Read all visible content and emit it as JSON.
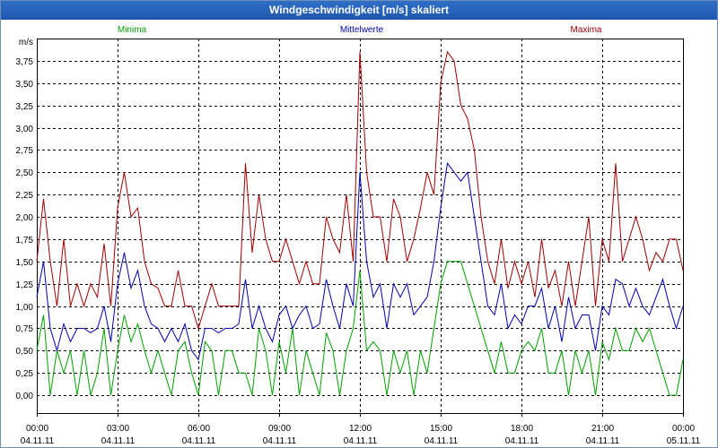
{
  "window": {
    "title": "Windgeschwindigkeit [m/s] skaliert"
  },
  "colors": {
    "min": "#00a000",
    "mean": "#0000b0",
    "max": "#a00000",
    "grid": "#000000"
  },
  "chart_data": {
    "type": "line",
    "title": "Windgeschwindigkeit [m/s] skaliert",
    "ylabel": "m/s",
    "ylim": [
      -0.2,
      4.0
    ],
    "xlim": [
      0,
      24
    ],
    "yticks": [
      0,
      0.25,
      0.5,
      0.75,
      1.0,
      1.25,
      1.5,
      1.75,
      2.0,
      2.25,
      2.5,
      2.75,
      3.0,
      3.25,
      3.5,
      3.75
    ],
    "ytick_labels": [
      "0,00",
      "0,25",
      "0,50",
      "0,75",
      "1,00",
      "1,25",
      "1,50",
      "1,75",
      "2,00",
      "2,25",
      "2,50",
      "2,75",
      "3,00",
      "3,25",
      "3,50",
      "3,75"
    ],
    "xticks": [
      {
        "x": 0,
        "time": "00:00",
        "date": "04.11.11"
      },
      {
        "x": 3,
        "time": "03:00",
        "date": "04.11.11"
      },
      {
        "x": 6,
        "time": "06:00",
        "date": "04.11.11"
      },
      {
        "x": 9,
        "time": "09:00",
        "date": "04.11.11"
      },
      {
        "x": 12,
        "time": "12:00",
        "date": "04.11.11"
      },
      {
        "x": 15,
        "time": "15:00",
        "date": "04.11.11"
      },
      {
        "x": 18,
        "time": "18:00",
        "date": "04.11.11"
      },
      {
        "x": 21,
        "time": "21:00",
        "date": "04.11.11"
      },
      {
        "x": 24,
        "time": "00:00",
        "date": "05.11.11"
      }
    ],
    "series": [
      {
        "key": "min",
        "name": "Minima",
        "x": [
          0,
          0.25,
          0.5,
          0.75,
          1,
          1.25,
          1.5,
          1.75,
          2,
          2.25,
          2.5,
          2.75,
          3,
          3.25,
          3.5,
          3.75,
          4,
          4.25,
          4.5,
          4.75,
          5,
          5.25,
          5.5,
          5.75,
          6,
          6.25,
          6.5,
          6.75,
          7,
          7.25,
          7.5,
          7.75,
          8,
          8.25,
          8.5,
          8.75,
          9,
          9.25,
          9.5,
          9.75,
          10,
          10.25,
          10.5,
          10.75,
          11,
          11.25,
          11.5,
          11.75,
          12,
          12.25,
          12.5,
          12.75,
          13,
          13.25,
          13.5,
          13.75,
          14,
          14.25,
          14.5,
          14.75,
          15,
          15.25,
          15.5,
          15.75,
          16,
          16.25,
          16.5,
          16.75,
          17,
          17.25,
          17.5,
          17.75,
          18,
          18.25,
          18.5,
          18.75,
          19,
          19.25,
          19.5,
          19.75,
          20,
          20.25,
          20.5,
          20.75,
          21,
          21.25,
          21.5,
          21.75,
          22,
          22.25,
          22.5,
          22.75,
          23,
          23.25,
          23.5,
          23.75,
          24
        ],
        "values": [
          0.5,
          0.9,
          0,
          0.5,
          0.25,
          0.5,
          0,
          0.5,
          0,
          0.25,
          0.75,
          0,
          0.5,
          0.9,
          0.6,
          0.8,
          0.5,
          0.25,
          0.5,
          0.25,
          0,
          0.5,
          0.6,
          0.25,
          0,
          0.6,
          0.5,
          0,
          0.5,
          0.5,
          0.25,
          0.25,
          0,
          0.75,
          0.5,
          0,
          0.6,
          0.25,
          0.75,
          0,
          0.5,
          0.25,
          0,
          0.7,
          0.5,
          0,
          0.5,
          0.75,
          1.4,
          0.5,
          0.6,
          0.5,
          0,
          0.5,
          0.25,
          0.5,
          0,
          0.5,
          0.25,
          0.75,
          1.25,
          1.5,
          1.5,
          1.5,
          1.25,
          1.0,
          0.75,
          0.5,
          0.25,
          0.6,
          0.25,
          0.25,
          0.5,
          0.6,
          0.5,
          0.75,
          0.25,
          0.25,
          0.5,
          0,
          0.5,
          0.25,
          0.5,
          0,
          0.6,
          0.4,
          0.75,
          0.5,
          0.5,
          0.75,
          0.6,
          0.75,
          0.5,
          0.25,
          0,
          0,
          0.4
        ]
      },
      {
        "key": "mean",
        "name": "Mittelwerte",
        "x": [
          0,
          0.25,
          0.5,
          0.75,
          1,
          1.25,
          1.5,
          1.75,
          2,
          2.25,
          2.5,
          2.75,
          3,
          3.25,
          3.5,
          3.75,
          4,
          4.25,
          4.5,
          4.75,
          5,
          5.25,
          5.5,
          5.75,
          6,
          6.25,
          6.5,
          6.75,
          7,
          7.25,
          7.5,
          7.75,
          8,
          8.25,
          8.5,
          8.75,
          9,
          9.25,
          9.5,
          9.75,
          10,
          10.25,
          10.5,
          10.75,
          11,
          11.25,
          11.5,
          11.75,
          12,
          12.25,
          12.5,
          12.75,
          13,
          13.25,
          13.5,
          13.75,
          14,
          14.25,
          14.5,
          14.75,
          15,
          15.25,
          15.5,
          15.75,
          16,
          16.25,
          16.5,
          16.75,
          17,
          17.25,
          17.5,
          17.75,
          18,
          18.25,
          18.5,
          18.75,
          19,
          19.25,
          19.5,
          19.75,
          20,
          20.25,
          20.5,
          20.75,
          21,
          21.25,
          21.5,
          21.75,
          22,
          22.25,
          22.5,
          22.75,
          23,
          23.25,
          23.5,
          23.75,
          24
        ],
        "values": [
          1.1,
          1.5,
          0.75,
          0.5,
          0.8,
          0.6,
          0.75,
          0.75,
          0.7,
          0.75,
          1.0,
          0.6,
          1.25,
          1.6,
          1.2,
          1.4,
          1.0,
          0.8,
          0.75,
          0.6,
          0.75,
          0.6,
          0.8,
          0.5,
          0.4,
          0.75,
          0.75,
          0.7,
          0.75,
          0.75,
          0.8,
          1.3,
          0.75,
          1.0,
          0.75,
          0.6,
          0.9,
          1.0,
          0.75,
          0.9,
          1.0,
          0.75,
          0.8,
          1.3,
          1.0,
          0.75,
          1.25,
          1.0,
          2.5,
          1.5,
          1.1,
          1.25,
          0.75,
          1.25,
          1.1,
          1.25,
          0.9,
          1.0,
          1.1,
          1.5,
          2.1,
          2.6,
          2.5,
          2.4,
          2.5,
          2.0,
          1.5,
          1.0,
          0.9,
          1.25,
          0.75,
          0.9,
          0.8,
          1.0,
          1.0,
          1.2,
          0.75,
          1.0,
          0.6,
          1.1,
          0.75,
          0.9,
          0.9,
          0.5,
          1.0,
          0.9,
          1.3,
          1.25,
          1.0,
          1.2,
          1.0,
          0.9,
          1.1,
          1.3,
          1.0,
          0.75,
          1.0
        ]
      },
      {
        "key": "max",
        "name": "Maxima",
        "x": [
          0,
          0.25,
          0.5,
          0.75,
          1,
          1.25,
          1.5,
          1.75,
          2,
          2.25,
          2.5,
          2.75,
          3,
          3.25,
          3.5,
          3.75,
          4,
          4.25,
          4.5,
          4.75,
          5,
          5.25,
          5.5,
          5.75,
          6,
          6.25,
          6.5,
          6.75,
          7,
          7.25,
          7.5,
          7.75,
          8,
          8.25,
          8.5,
          8.75,
          9,
          9.25,
          9.5,
          9.75,
          10,
          10.25,
          10.5,
          10.75,
          11,
          11.25,
          11.5,
          11.75,
          12,
          12.25,
          12.5,
          12.75,
          13,
          13.25,
          13.5,
          13.75,
          14,
          14.25,
          14.5,
          14.75,
          15,
          15.25,
          15.5,
          15.75,
          16,
          16.25,
          16.5,
          16.75,
          17,
          17.25,
          17.5,
          17.75,
          18,
          18.25,
          18.5,
          18.75,
          19,
          19.25,
          19.5,
          19.75,
          20,
          20.25,
          20.5,
          20.75,
          21,
          21.25,
          21.5,
          21.75,
          22,
          22.25,
          22.5,
          22.75,
          23,
          23.25,
          23.5,
          23.75,
          24
        ],
        "values": [
          1.5,
          2.2,
          1.5,
          1.0,
          1.75,
          1.0,
          1.25,
          1.0,
          1.25,
          1.1,
          1.7,
          1.0,
          2.1,
          2.5,
          2.0,
          2.1,
          1.5,
          1.25,
          1.2,
          1.0,
          1.0,
          1.4,
          1.0,
          1.0,
          0.75,
          1.0,
          1.25,
          1.0,
          1.0,
          1.0,
          1.0,
          2.6,
          1.6,
          2.25,
          1.75,
          1.5,
          1.5,
          1.75,
          1.5,
          1.25,
          1.5,
          1.25,
          1.25,
          2.0,
          1.75,
          1.6,
          2.25,
          1.5,
          3.85,
          2.5,
          2.0,
          2.0,
          1.5,
          2.2,
          2.0,
          1.5,
          1.75,
          2.1,
          2.5,
          2.25,
          3.5,
          3.85,
          3.75,
          3.25,
          3.1,
          2.75,
          2.0,
          1.5,
          1.25,
          1.75,
          1.2,
          1.5,
          1.25,
          1.5,
          1.1,
          1.75,
          1.2,
          1.4,
          1.0,
          1.5,
          1.0,
          1.5,
          2.0,
          1.0,
          1.75,
          1.5,
          2.6,
          1.5,
          1.75,
          2.0,
          1.75,
          1.4,
          1.6,
          1.5,
          1.75,
          1.75,
          1.4
        ]
      }
    ]
  }
}
